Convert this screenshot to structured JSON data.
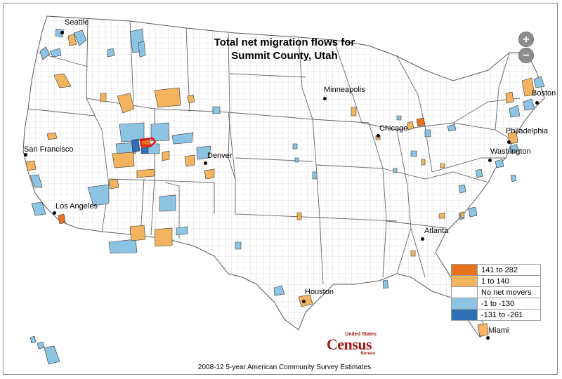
{
  "map": {
    "title_line1": "Total net migration flows for",
    "title_line2": "Summit County, Utah",
    "source": "2008-12 5-year American Community Survey Estimates",
    "zoom_in_label": "+",
    "zoom_out_label": "−"
  },
  "cities": [
    {
      "name": "Seattle"
    },
    {
      "name": "Minneapolis"
    },
    {
      "name": "Boston"
    },
    {
      "name": "Chicago"
    },
    {
      "name": "Philadelphia"
    },
    {
      "name": "San Francisco"
    },
    {
      "name": "Denver"
    },
    {
      "name": "Washington"
    },
    {
      "name": "Los Angeles"
    },
    {
      "name": "Atlanta"
    },
    {
      "name": "Houston"
    },
    {
      "name": "Miami"
    }
  ],
  "legend": {
    "items": [
      {
        "label": "141 to 282",
        "color": "#e8731e"
      },
      {
        "label": "1 to 140",
        "color": "#f4b45f"
      },
      {
        "label": "No net movers",
        "color": "#ffffff"
      },
      {
        "label": "-1 to -130",
        "color": "#8dc4e3"
      },
      {
        "label": "-131 to -261",
        "color": "#2f6fb5"
      }
    ]
  },
  "logo": {
    "top": "United States",
    "main": "Census",
    "bottom": "Bureau"
  },
  "colors": {
    "orange_dark": "#e8731e",
    "orange_light": "#f4b45f",
    "blue_light": "#8dc4e3",
    "blue_dark": "#2f6fb5",
    "highlight": "#e8111b"
  }
}
